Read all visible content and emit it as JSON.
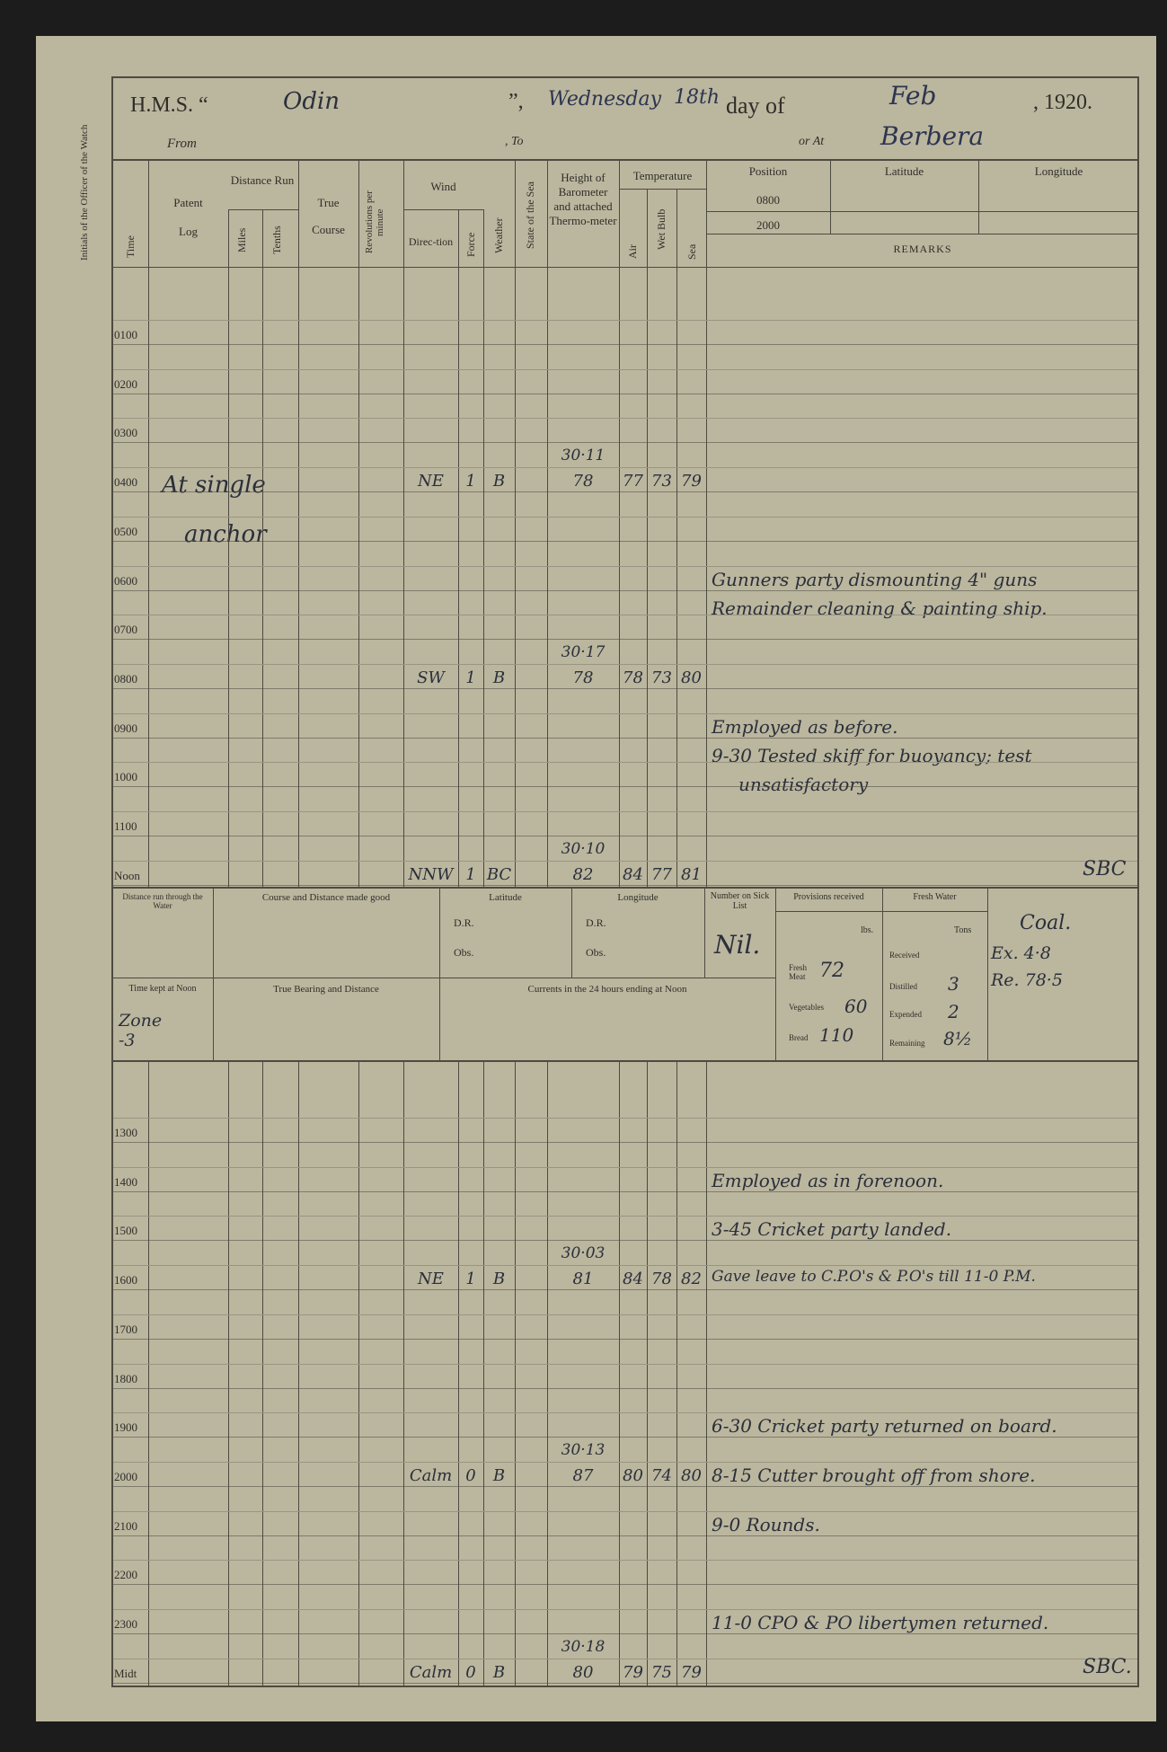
{
  "header": {
    "hms_label": "H.M.S. “",
    "ship": "Odin",
    "close_quote": "”,",
    "weekday": "Wednesday",
    "day": "18th",
    "day_of": "day of",
    "month": "Feb",
    "year": ", 1920.",
    "from_label": "From",
    "to_label": ", To",
    "or_at_label": "or At",
    "place": "Berbera"
  },
  "margin_label": "Initials of the Officer of the Watch",
  "columns": {
    "time": "Time",
    "patent_log_1": "Patent",
    "patent_log_2": "Log",
    "distance_run": "Distance Run",
    "miles": "Miles",
    "tenths": "Tenths",
    "true_course_1": "True",
    "true_course_2": "Course",
    "revolutions": "Revolutions per minute",
    "wind": "Wind",
    "direction": "Direc-tion",
    "force": "Force",
    "weather": "Weather",
    "state_of_sea": "State of the Sea",
    "barometer": "Height of Barometer and attached Thermo-meter",
    "temperature": "Temperature",
    "air": "Air",
    "wet_bulb": "Wet Bulb",
    "sea": "Sea",
    "position": "Position",
    "pos_0800": "0800",
    "pos_2000": "2000",
    "latitude": "Latitude",
    "longitude": "Longitude",
    "remarks": "REMARKS"
  },
  "patent_log_note": [
    "At single",
    "anchor"
  ],
  "morning_rows": [
    {
      "time": "0100"
    },
    {
      "time": "0200"
    },
    {
      "time": "0300"
    },
    {
      "time": "0400",
      "direction": "NE",
      "force": "1",
      "weather": "B",
      "barometer": "30·11",
      "thermometer": "78",
      "air": "77",
      "wet_bulb": "73",
      "sea": "79"
    },
    {
      "time": "0500"
    },
    {
      "time": "0600",
      "remarks": [
        "Gunners party dismounting 4\" guns",
        "Remainder cleaning & painting ship."
      ]
    },
    {
      "time": "0700"
    },
    {
      "time": "0800",
      "direction": "SW",
      "force": "1",
      "weather": "B",
      "barometer": "30·17",
      "thermometer": "78",
      "air": "78",
      "wet_bulb": "73",
      "sea": "80"
    },
    {
      "time": "0900",
      "remarks": [
        "Employed as before.",
        "9-30 Tested skiff for buoyancy; test",
        "unsatisfactory"
      ]
    },
    {
      "time": "1000"
    },
    {
      "time": "1100"
    },
    {
      "time": "Noon",
      "direction": "NNW",
      "force": "1",
      "weather": "BC",
      "barometer": "30·10",
      "thermometer": "82",
      "air": "84",
      "wet_bulb": "77",
      "sea": "81",
      "signature": "SBC"
    }
  ],
  "noon_section": {
    "distance_run_label": "Distance run through the Water",
    "course_made_good_label": "Course and Distance made good",
    "latitude_label": "Latitude",
    "longitude_label": "Longitude",
    "dr": "D.R.",
    "obs": "Obs.",
    "sick_list_label": "Number on Sick List",
    "sick_list_value": "Nil.",
    "provisions_label": "Provisions received",
    "lbs": "lbs.",
    "fresh_meat_label": "Fresh Meat",
    "fresh_meat": "72",
    "vegetables_label": "Vegetables",
    "vegetables": "60",
    "bread_label": "Bread",
    "bread": "110",
    "fresh_water_label": "Fresh Water",
    "tons": "Tons",
    "received_label": "Received",
    "distilled_label": "Distilled",
    "distilled": "3",
    "expended_label": "Expended",
    "expended": "2",
    "remaining_label": "Remaining",
    "remaining": "8½",
    "coal_title": "Coal.",
    "coal_ex": "Ex. 4·8",
    "coal_re": "Re. 78·5",
    "time_kept_label": "Time kept at Noon",
    "time_kept_value": "Zone -3",
    "true_bearing_label": "True Bearing and Distance",
    "currents_label": "Currents in the 24 hours ending at Noon"
  },
  "afternoon_rows": [
    {
      "time": "1300"
    },
    {
      "time": "1400",
      "remarks": [
        "Employed as in forenoon."
      ]
    },
    {
      "time": "1500",
      "remarks": [
        "3-45 Cricket party landed."
      ]
    },
    {
      "time": "1600",
      "direction": "NE",
      "force": "1",
      "weather": "B",
      "barometer": "30·03",
      "thermometer": "81",
      "air": "84",
      "wet_bulb": "78",
      "sea": "82",
      "remarks": [
        "Gave leave to C.P.O's & P.O's till 11-0 P.M."
      ]
    },
    {
      "time": "1700"
    },
    {
      "time": "1800"
    },
    {
      "time": "1900",
      "remarks": [
        "6-30 Cricket party returned on board."
      ]
    },
    {
      "time": "2000",
      "direction": "Calm",
      "force": "0",
      "weather": "B",
      "barometer": "30·13",
      "thermometer": "87",
      "air": "80",
      "wet_bulb": "74",
      "sea": "80",
      "remarks": [
        "8-15 Cutter brought off from shore."
      ]
    },
    {
      "time": "2100",
      "remarks": [
        "9-0 Rounds."
      ]
    },
    {
      "time": "2200"
    },
    {
      "time": "2300",
      "remarks": [
        "11-0 CPO & PO libertymen returned."
      ]
    },
    {
      "time": "Midt",
      "direction": "Calm",
      "force": "0",
      "weather": "B",
      "barometer": "30·18",
      "thermometer": "80",
      "air": "79",
      "wet_bulb": "75",
      "sea": "79",
      "signature": "SBC."
    }
  ],
  "colors": {
    "paper": "#bbb69e",
    "ink": "#2a2f3a",
    "rule": "#4d4a40"
  }
}
